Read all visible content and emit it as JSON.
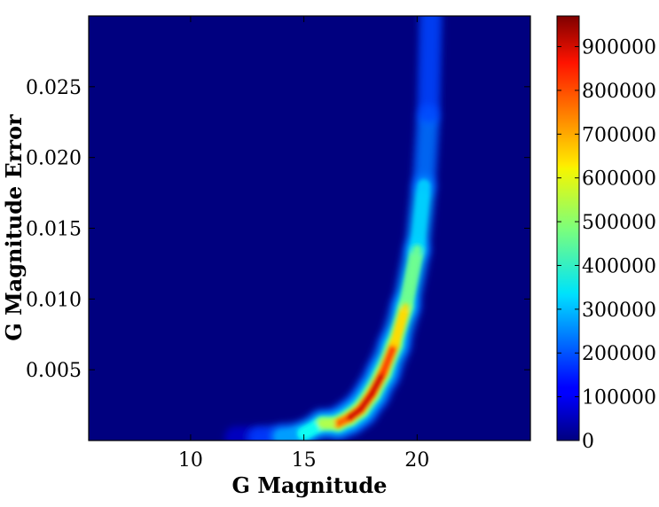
{
  "chart_data": {
    "type": "heatmap",
    "title": "",
    "xlabel": "G Magnitude",
    "ylabel": "G Magnitude Error",
    "xlim": [
      5.5,
      25
    ],
    "ylim": [
      0.0,
      0.03
    ],
    "x_ticks": [
      {
        "value": 10,
        "label": "10"
      },
      {
        "value": 15,
        "label": "15"
      },
      {
        "value": 20,
        "label": "20"
      }
    ],
    "y_ticks": [
      {
        "value": 0.005,
        "label": "0.005"
      },
      {
        "value": 0.01,
        "label": "0.010"
      },
      {
        "value": 0.015,
        "label": "0.015"
      },
      {
        "value": 0.02,
        "label": "0.020"
      },
      {
        "value": 0.025,
        "label": "0.025"
      }
    ],
    "colorbar": {
      "colormap": "jet",
      "range": [
        0,
        970000
      ],
      "ticks": [
        {
          "value": 0,
          "label": "0"
        },
        {
          "value": 100000,
          "label": "100000"
        },
        {
          "value": 200000,
          "label": "200000"
        },
        {
          "value": 300000,
          "label": "300000"
        },
        {
          "value": 400000,
          "label": "400000"
        },
        {
          "value": 500000,
          "label": "500000"
        },
        {
          "value": 600000,
          "label": "600000"
        },
        {
          "value": 700000,
          "label": "700000"
        },
        {
          "value": 800000,
          "label": "800000"
        },
        {
          "value": 900000,
          "label": "900000"
        }
      ]
    },
    "density_ridge": [
      {
        "g": 12.0,
        "err": 0.0002,
        "count": 80000
      },
      {
        "g": 13.0,
        "err": 0.0002,
        "count": 140000
      },
      {
        "g": 14.0,
        "err": 0.0003,
        "count": 220000
      },
      {
        "g": 15.0,
        "err": 0.0005,
        "count": 330000
      },
      {
        "g": 15.8,
        "err": 0.0012,
        "count": 420000
      },
      {
        "g": 16.5,
        "err": 0.0012,
        "count": 650000
      },
      {
        "g": 17.0,
        "err": 0.0016,
        "count": 880000
      },
      {
        "g": 17.5,
        "err": 0.0022,
        "count": 950000
      },
      {
        "g": 18.0,
        "err": 0.0033,
        "count": 960000
      },
      {
        "g": 18.5,
        "err": 0.0048,
        "count": 880000
      },
      {
        "g": 19.0,
        "err": 0.0068,
        "count": 720000
      },
      {
        "g": 19.5,
        "err": 0.0095,
        "count": 560000
      },
      {
        "g": 20.0,
        "err": 0.0135,
        "count": 380000
      },
      {
        "g": 20.3,
        "err": 0.018,
        "count": 270000
      },
      {
        "g": 20.5,
        "err": 0.023,
        "count": 200000
      },
      {
        "g": 20.6,
        "err": 0.03,
        "count": 170000
      }
    ]
  }
}
